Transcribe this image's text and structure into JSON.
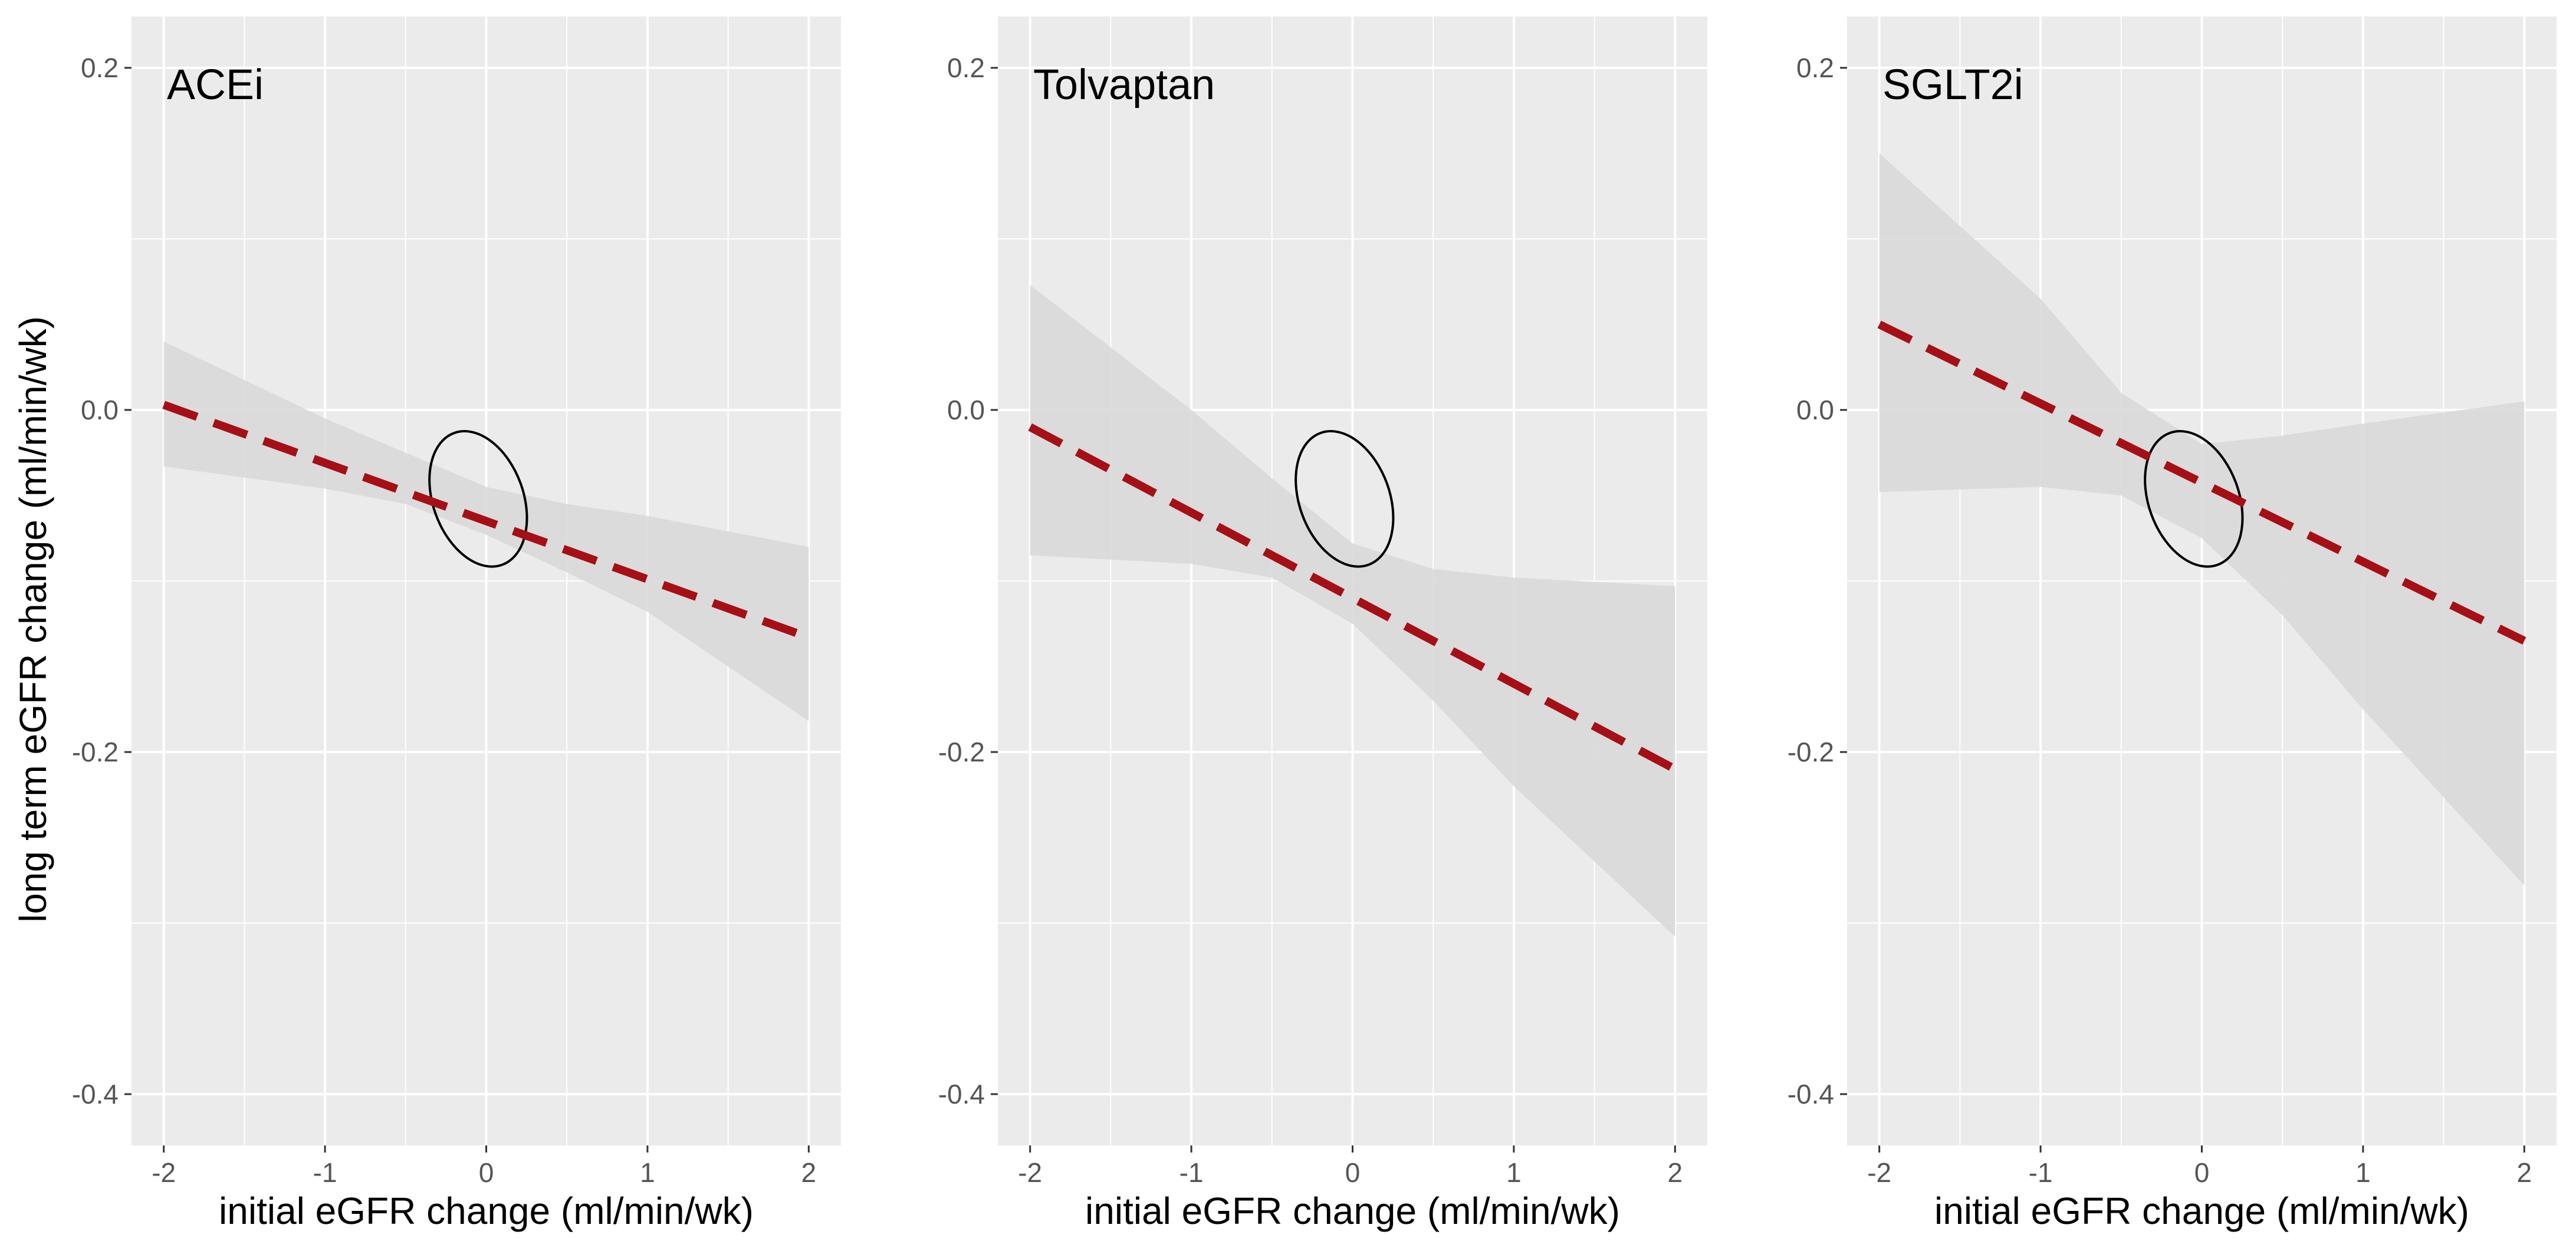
{
  "chart_data": {
    "type": "line",
    "ylabel": "long term eGFR change (ml/min/wk)",
    "xlabel": "initial  eGFR change (ml/min/wk)",
    "xlim": [
      -2.2,
      2.2
    ],
    "ylim": [
      -0.43,
      0.23
    ],
    "x_ticks": [
      -2,
      -1,
      0,
      1,
      2
    ],
    "x_tick_labels": [
      "-2",
      "-1",
      "0",
      "1",
      "2"
    ],
    "y_ticks": [
      -0.4,
      -0.2,
      0.0,
      0.2
    ],
    "y_tick_labels": [
      "-0.4",
      "-0.2",
      "0.0",
      "0.2"
    ],
    "grid": true,
    "line_style": "dashed",
    "colors": {
      "line": "#a50f15",
      "ribbon": "#d9d9d9",
      "panel_bg": "#ebebeb",
      "grid": "#ffffff",
      "ellipse": "#000000"
    },
    "panels": [
      {
        "title": "ACEi",
        "x": [
          -2,
          2
        ],
        "y": [
          0.003,
          -0.133
        ],
        "ci_x": [
          -2,
          -1,
          -0.5,
          0,
          0.5,
          1,
          2
        ],
        "ci_upper": [
          0.04,
          -0.005,
          -0.025,
          -0.045,
          -0.055,
          -0.062,
          -0.08
        ],
        "ci_lower": [
          -0.033,
          -0.046,
          -0.055,
          -0.073,
          -0.095,
          -0.118,
          -0.182
        ],
        "ellipse": {
          "cx": -0.05,
          "cy": -0.052,
          "rx": 0.28,
          "ry": 0.041,
          "rotation": -20
        }
      },
      {
        "title": "Tolvaptan",
        "x": [
          -2,
          2
        ],
        "y": [
          -0.01,
          -0.21
        ],
        "ci_x": [
          -2,
          -1,
          -0.5,
          0,
          0.5,
          1,
          2
        ],
        "ci_upper": [
          0.073,
          0.0,
          -0.04,
          -0.078,
          -0.093,
          -0.098,
          -0.103
        ],
        "ci_lower": [
          -0.085,
          -0.09,
          -0.098,
          -0.125,
          -0.17,
          -0.22,
          -0.308
        ],
        "ellipse": {
          "cx": -0.05,
          "cy": -0.052,
          "rx": 0.28,
          "ry": 0.041,
          "rotation": -20
        }
      },
      {
        "title": "SGLT2i",
        "x": [
          -2,
          2
        ],
        "y": [
          0.05,
          -0.135
        ],
        "ci_x": [
          -2,
          -1,
          -0.5,
          0,
          0.5,
          1,
          2
        ],
        "ci_upper": [
          0.15,
          0.065,
          0.01,
          -0.02,
          -0.015,
          -0.008,
          0.005
        ],
        "ci_lower": [
          -0.048,
          -0.045,
          -0.05,
          -0.075,
          -0.12,
          -0.175,
          -0.278
        ],
        "ellipse": {
          "cx": -0.05,
          "cy": -0.052,
          "rx": 0.28,
          "ry": 0.041,
          "rotation": -20
        }
      }
    ]
  }
}
